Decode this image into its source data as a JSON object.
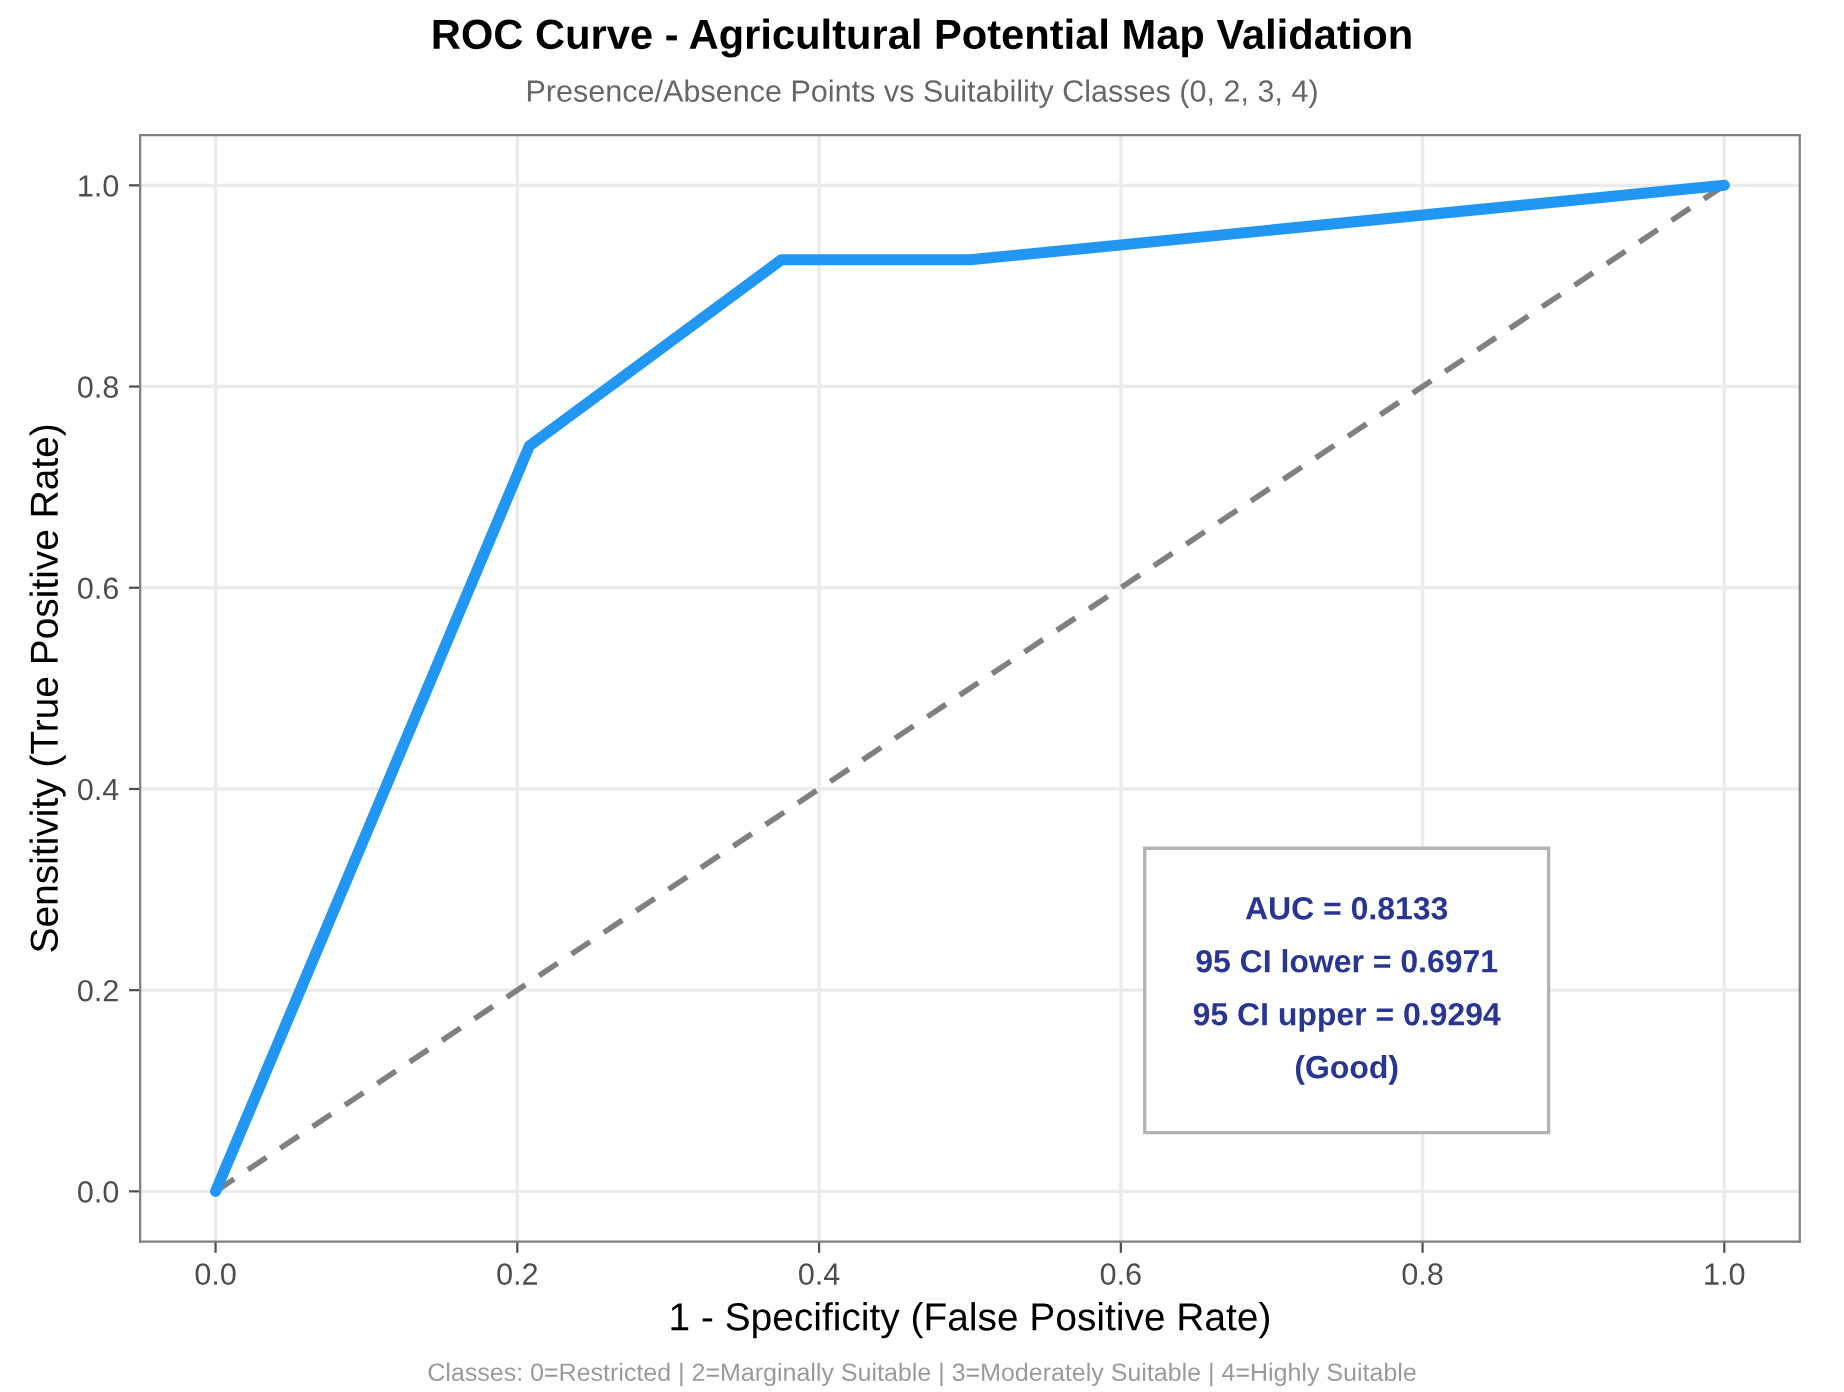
{
  "chart_data": {
    "type": "line",
    "title": "ROC Curve - Agricultural Potential Map Validation",
    "subtitle": "Presence/Absence Points vs Suitability Classes (0, 2, 3, 4)",
    "xlabel": "1 - Specificity (False Positive Rate)",
    "ylabel": "Sensitivity (True Positive Rate)",
    "series": [
      {
        "x": [
          0,
          1
        ],
        "values": [
          0,
          1
        ],
        "color": "#808080",
        "line_style": "dashed"
      },
      {
        "x": [
          0,
          0.208,
          0.375,
          0.5,
          1
        ],
        "values": [
          0,
          0.741,
          0.926,
          0.926,
          1
        ],
        "color": "#2196f3",
        "line_style": "solid"
      }
    ],
    "xlim": [
      -0.05,
      1.05
    ],
    "ylim": [
      -0.05,
      1.05
    ],
    "xticks": [
      {
        "value": 0,
        "label": "0.0"
      },
      0.2,
      0.4,
      0.6,
      0.8,
      {
        "value": 1,
        "label": "1.0"
      }
    ],
    "yticks": [
      {
        "value": 0,
        "label": "0.0"
      },
      0.2,
      0.4,
      0.6,
      0.8,
      {
        "value": 1,
        "label": "1.0"
      }
    ],
    "grid": true,
    "annotations": [
      "AUC = 0.8133\n95 CI lower = 0.6971\n95 CI upper = 0.9294\n(Good)",
      "Classes: 0=Restricted | 2=Marginally Suitable | 3=Moderately Suitable | 4=Highly Suitable"
    ]
  }
}
